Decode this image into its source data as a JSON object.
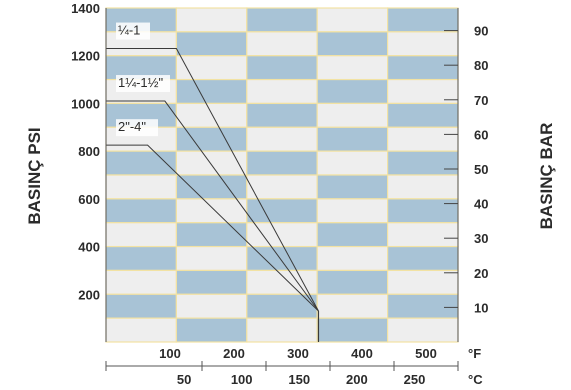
{
  "chart_data": {
    "type": "line",
    "left_axis": {
      "title": "BASINÇ PSI",
      "ticks": [
        200,
        400,
        600,
        800,
        1000,
        1200,
        1400
      ],
      "range": [
        0,
        1400
      ]
    },
    "right_axis": {
      "title": "BASINÇ BAR",
      "ticks": [
        10,
        20,
        30,
        40,
        50,
        60,
        70,
        80,
        90
      ]
    },
    "x_axis_f": {
      "unit": "°F",
      "ticks": [
        100,
        200,
        300,
        400,
        500
      ],
      "range": [
        0,
        550
      ]
    },
    "x_axis_c": {
      "unit": "°C",
      "ticks": [
        50,
        100,
        150,
        200,
        250
      ]
    },
    "series": [
      {
        "name": "¼-1",
        "points": [
          [
            0,
            1230
          ],
          [
            110,
            1230
          ],
          [
            332,
            130
          ]
        ]
      },
      {
        "name": "1¼-1½\"",
        "points": [
          [
            0,
            1010
          ],
          [
            92,
            1010
          ],
          [
            332,
            130
          ]
        ]
      },
      {
        "name": "2\"-4\"",
        "points": [
          [
            0,
            825
          ],
          [
            65,
            825
          ],
          [
            332,
            130
          ]
        ]
      }
    ],
    "grid": true,
    "background_pattern": "alternating blue/grey bricks",
    "colors": {
      "brick_blue": "#a8c3d6",
      "brick_grey": "#eeeeee",
      "grid_line": "#f2e2a3",
      "line": "#3a3a3a"
    }
  }
}
